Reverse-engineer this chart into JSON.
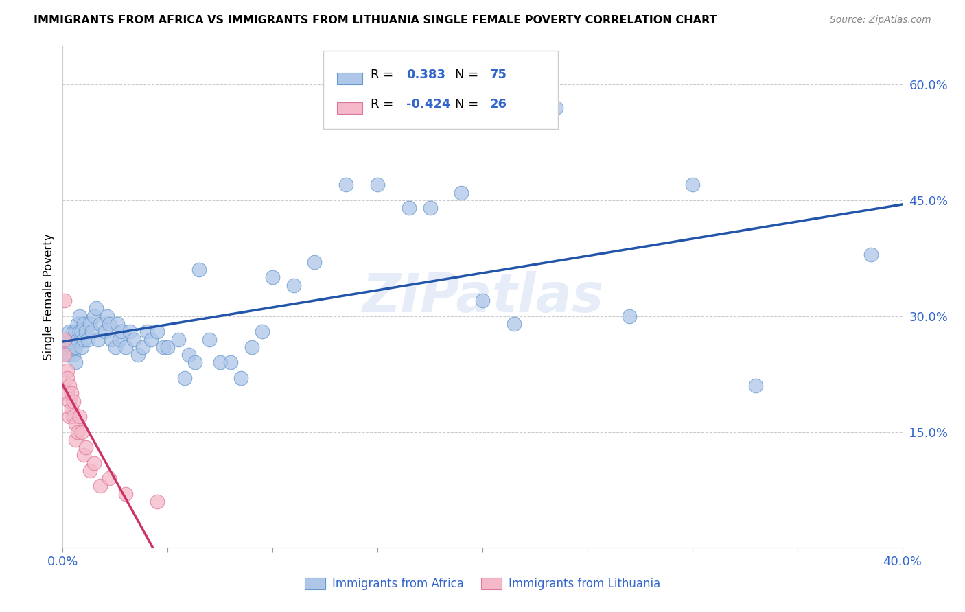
{
  "title": "IMMIGRANTS FROM AFRICA VS IMMIGRANTS FROM LITHUANIA SINGLE FEMALE POVERTY CORRELATION CHART",
  "source": "Source: ZipAtlas.com",
  "ylabel": "Single Female Poverty",
  "right_yticks": [
    "60.0%",
    "45.0%",
    "30.0%",
    "15.0%"
  ],
  "right_ytick_vals": [
    0.6,
    0.45,
    0.3,
    0.15
  ],
  "africa_R": "0.383",
  "africa_N": "75",
  "lithuania_R": "-0.424",
  "lithuania_N": "26",
  "africa_color": "#aec6e8",
  "africa_edge": "#6699cc",
  "africa_line_color": "#2255aa",
  "lithuania_color": "#f4b8c8",
  "lithuania_edge": "#dd7799",
  "lithuania_line_color": "#cc3366",
  "watermark": "ZIPatlas",
  "africa_scatter_x": [
    0.001,
    0.001,
    0.002,
    0.002,
    0.003,
    0.003,
    0.003,
    0.004,
    0.004,
    0.005,
    0.005,
    0.005,
    0.006,
    0.006,
    0.006,
    0.007,
    0.007,
    0.008,
    0.008,
    0.009,
    0.009,
    0.01,
    0.01,
    0.011,
    0.012,
    0.013,
    0.014,
    0.015,
    0.016,
    0.017,
    0.018,
    0.02,
    0.021,
    0.022,
    0.023,
    0.025,
    0.026,
    0.027,
    0.028,
    0.03,
    0.032,
    0.034,
    0.036,
    0.038,
    0.04,
    0.042,
    0.045,
    0.048,
    0.05,
    0.055,
    0.058,
    0.06,
    0.063,
    0.065,
    0.07,
    0.075,
    0.08,
    0.085,
    0.09,
    0.095,
    0.1,
    0.11,
    0.12,
    0.135,
    0.15,
    0.165,
    0.175,
    0.19,
    0.2,
    0.215,
    0.235,
    0.27,
    0.3,
    0.33,
    0.385
  ],
  "africa_scatter_y": [
    0.26,
    0.27,
    0.25,
    0.26,
    0.27,
    0.25,
    0.28,
    0.27,
    0.26,
    0.28,
    0.26,
    0.25,
    0.28,
    0.26,
    0.24,
    0.27,
    0.29,
    0.28,
    0.3,
    0.26,
    0.28,
    0.27,
    0.29,
    0.28,
    0.27,
    0.29,
    0.28,
    0.3,
    0.31,
    0.27,
    0.29,
    0.28,
    0.3,
    0.29,
    0.27,
    0.26,
    0.29,
    0.27,
    0.28,
    0.26,
    0.28,
    0.27,
    0.25,
    0.26,
    0.28,
    0.27,
    0.28,
    0.26,
    0.26,
    0.27,
    0.22,
    0.25,
    0.24,
    0.36,
    0.27,
    0.24,
    0.24,
    0.22,
    0.26,
    0.28,
    0.35,
    0.34,
    0.37,
    0.47,
    0.47,
    0.44,
    0.44,
    0.46,
    0.32,
    0.29,
    0.57,
    0.3,
    0.47,
    0.21,
    0.38
  ],
  "lithuania_scatter_x": [
    0.001,
    0.001,
    0.001,
    0.002,
    0.002,
    0.002,
    0.003,
    0.003,
    0.003,
    0.004,
    0.004,
    0.005,
    0.005,
    0.006,
    0.006,
    0.007,
    0.008,
    0.009,
    0.01,
    0.011,
    0.013,
    0.015,
    0.018,
    0.022,
    0.03,
    0.045
  ],
  "lithuania_scatter_y": [
    0.32,
    0.27,
    0.25,
    0.23,
    0.2,
    0.22,
    0.21,
    0.19,
    0.17,
    0.2,
    0.18,
    0.19,
    0.17,
    0.16,
    0.14,
    0.15,
    0.17,
    0.15,
    0.12,
    0.13,
    0.1,
    0.11,
    0.08,
    0.09,
    0.07,
    0.06
  ],
  "xlim": [
    0.0,
    0.4
  ],
  "ylim": [
    0.0,
    0.65
  ],
  "xtick_positions": [
    0.0,
    0.05,
    0.1,
    0.15,
    0.2,
    0.25,
    0.3,
    0.35,
    0.4
  ],
  "background_color": "#ffffff",
  "grid_color": "#cccccc",
  "legend_africa_label": "Immigrants from Africa",
  "legend_lithuania_label": "Immigrants from Lithuania"
}
